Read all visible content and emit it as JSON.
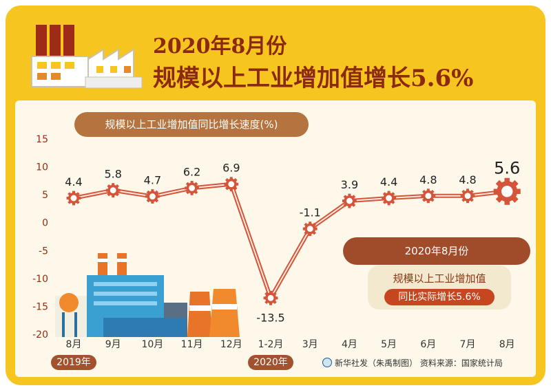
{
  "title_line1": "2020年8月份",
  "title_line2": "规模以上工业增加值增长5.6%",
  "subtitle": "规模以上工业增加值同比增长速度(%)",
  "legend": {
    "header": "2020年8月份",
    "line1": "规模以上工业增加值",
    "line2": "同比实际增长5.6%"
  },
  "year_tags": [
    "2019年",
    "2020年"
  ],
  "credit": "新华社发（朱禹制图） 资料来源：国家统计局",
  "colors": {
    "frame": "#f6c51f",
    "line": "#d4553a",
    "accent": "#c6461f"
  },
  "chart_data": {
    "type": "line",
    "categories": [
      "8月",
      "9月",
      "10月",
      "11月",
      "12月",
      "1-2月",
      "3月",
      "4月",
      "5月",
      "6月",
      "7月",
      "8月"
    ],
    "series": [
      {
        "values": [
          4.4,
          5.8,
          4.7,
          6.2,
          6.9,
          -13.5,
          -1.1,
          3.9,
          4.4,
          4.8,
          4.8,
          5.6
        ]
      }
    ],
    "value_labels": [
      "4.4",
      "5.8",
      "4.7",
      "6.2",
      "6.9",
      "-13.5",
      "-1.1",
      "3.9",
      "4.4",
      "4.8",
      "4.8",
      "5.6"
    ],
    "yticks": [
      "15",
      "10",
      "5",
      "0",
      "-5",
      "-10",
      "-15",
      "-20"
    ],
    "ylim": [
      -20,
      15
    ]
  }
}
